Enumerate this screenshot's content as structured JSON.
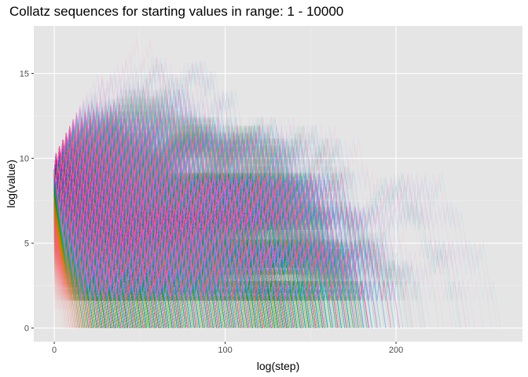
{
  "chart_data": {
    "type": "line",
    "title": "Collatz sequences for starting values in range: 1 - 10000",
    "xlabel": "log(step)",
    "ylabel": "log(value)",
    "xlim": [
      -12,
      274
    ],
    "ylim": [
      -0.8,
      17.8
    ],
    "x_ticks": [
      {
        "value": 0,
        "label": "0"
      },
      {
        "value": 100,
        "label": "100"
      },
      {
        "value": 200,
        "label": "200"
      }
    ],
    "y_ticks": [
      {
        "value": 0,
        "label": "0"
      },
      {
        "value": 5,
        "label": "5"
      },
      {
        "value": 10,
        "label": "10"
      },
      {
        "value": 15,
        "label": "15"
      }
    ],
    "start_range": [
      1,
      10000
    ],
    "series_count": 10000,
    "grid": true,
    "legend": "none",
    "colors": {
      "panel": "#e5e5e5",
      "grid_major": "#ffffff",
      "grid_minor": "#f0f0f0",
      "palette": [
        "#f8766d",
        "#de8c00",
        "#b79f00",
        "#7cae00",
        "#00ba38",
        "#00c08b",
        "#00bfc4",
        "#00b4f0",
        "#619cff",
        "#c77cff",
        "#f564e3",
        "#ff64b0"
      ]
    }
  }
}
